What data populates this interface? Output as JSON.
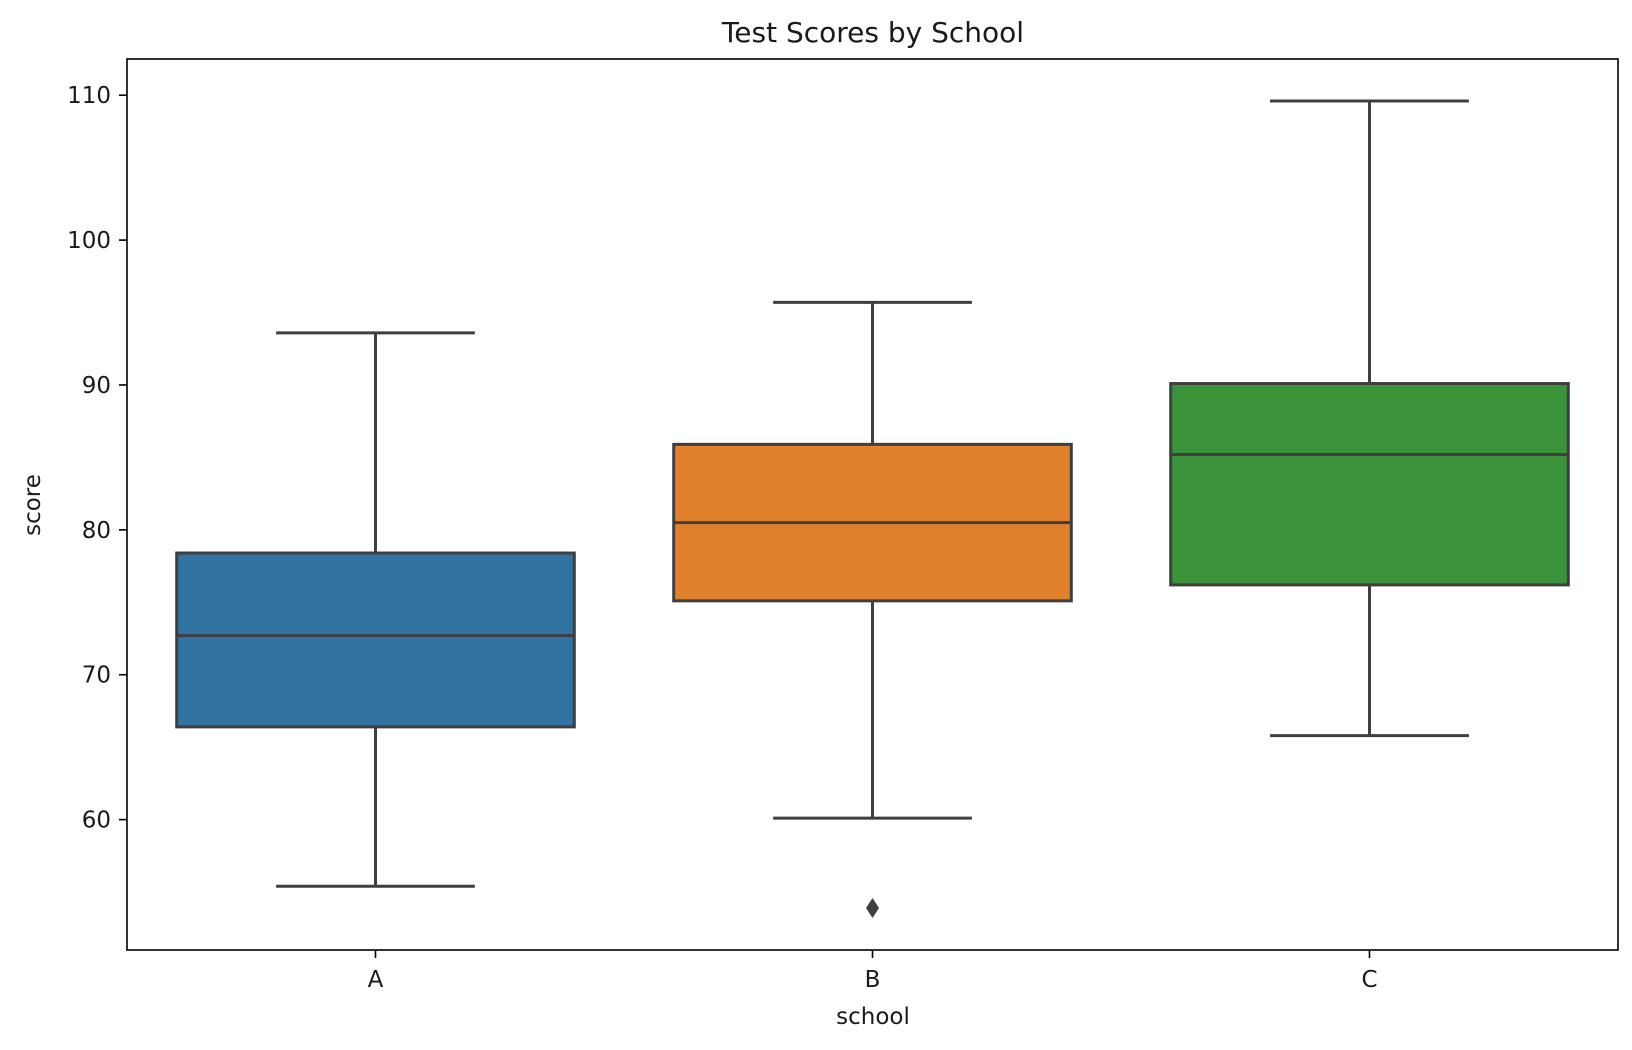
{
  "chart_data": {
    "type": "box",
    "title": "Test Scores by School",
    "xlabel": "school",
    "ylabel": "score",
    "categories": [
      "A",
      "B",
      "C"
    ],
    "ylim": [
      51,
      112.5
    ],
    "yticks": [
      60,
      70,
      80,
      90,
      100,
      110
    ],
    "grid": false,
    "boxes": [
      {
        "category": "A",
        "whisker_low": 55.4,
        "q1": 66.4,
        "median": 72.7,
        "q3": 78.4,
        "whisker_high": 93.6,
        "outliers": [],
        "color": "#3274a1"
      },
      {
        "category": "B",
        "whisker_low": 60.1,
        "q1": 75.1,
        "median": 80.5,
        "q3": 85.9,
        "whisker_high": 95.7,
        "outliers": [
          53.9
        ],
        "color": "#e1812c"
      },
      {
        "category": "C",
        "whisker_low": 65.8,
        "q1": 76.2,
        "median": 85.2,
        "q3": 90.1,
        "whisker_high": 109.6,
        "outliers": [],
        "color": "#3a923a"
      }
    ]
  }
}
